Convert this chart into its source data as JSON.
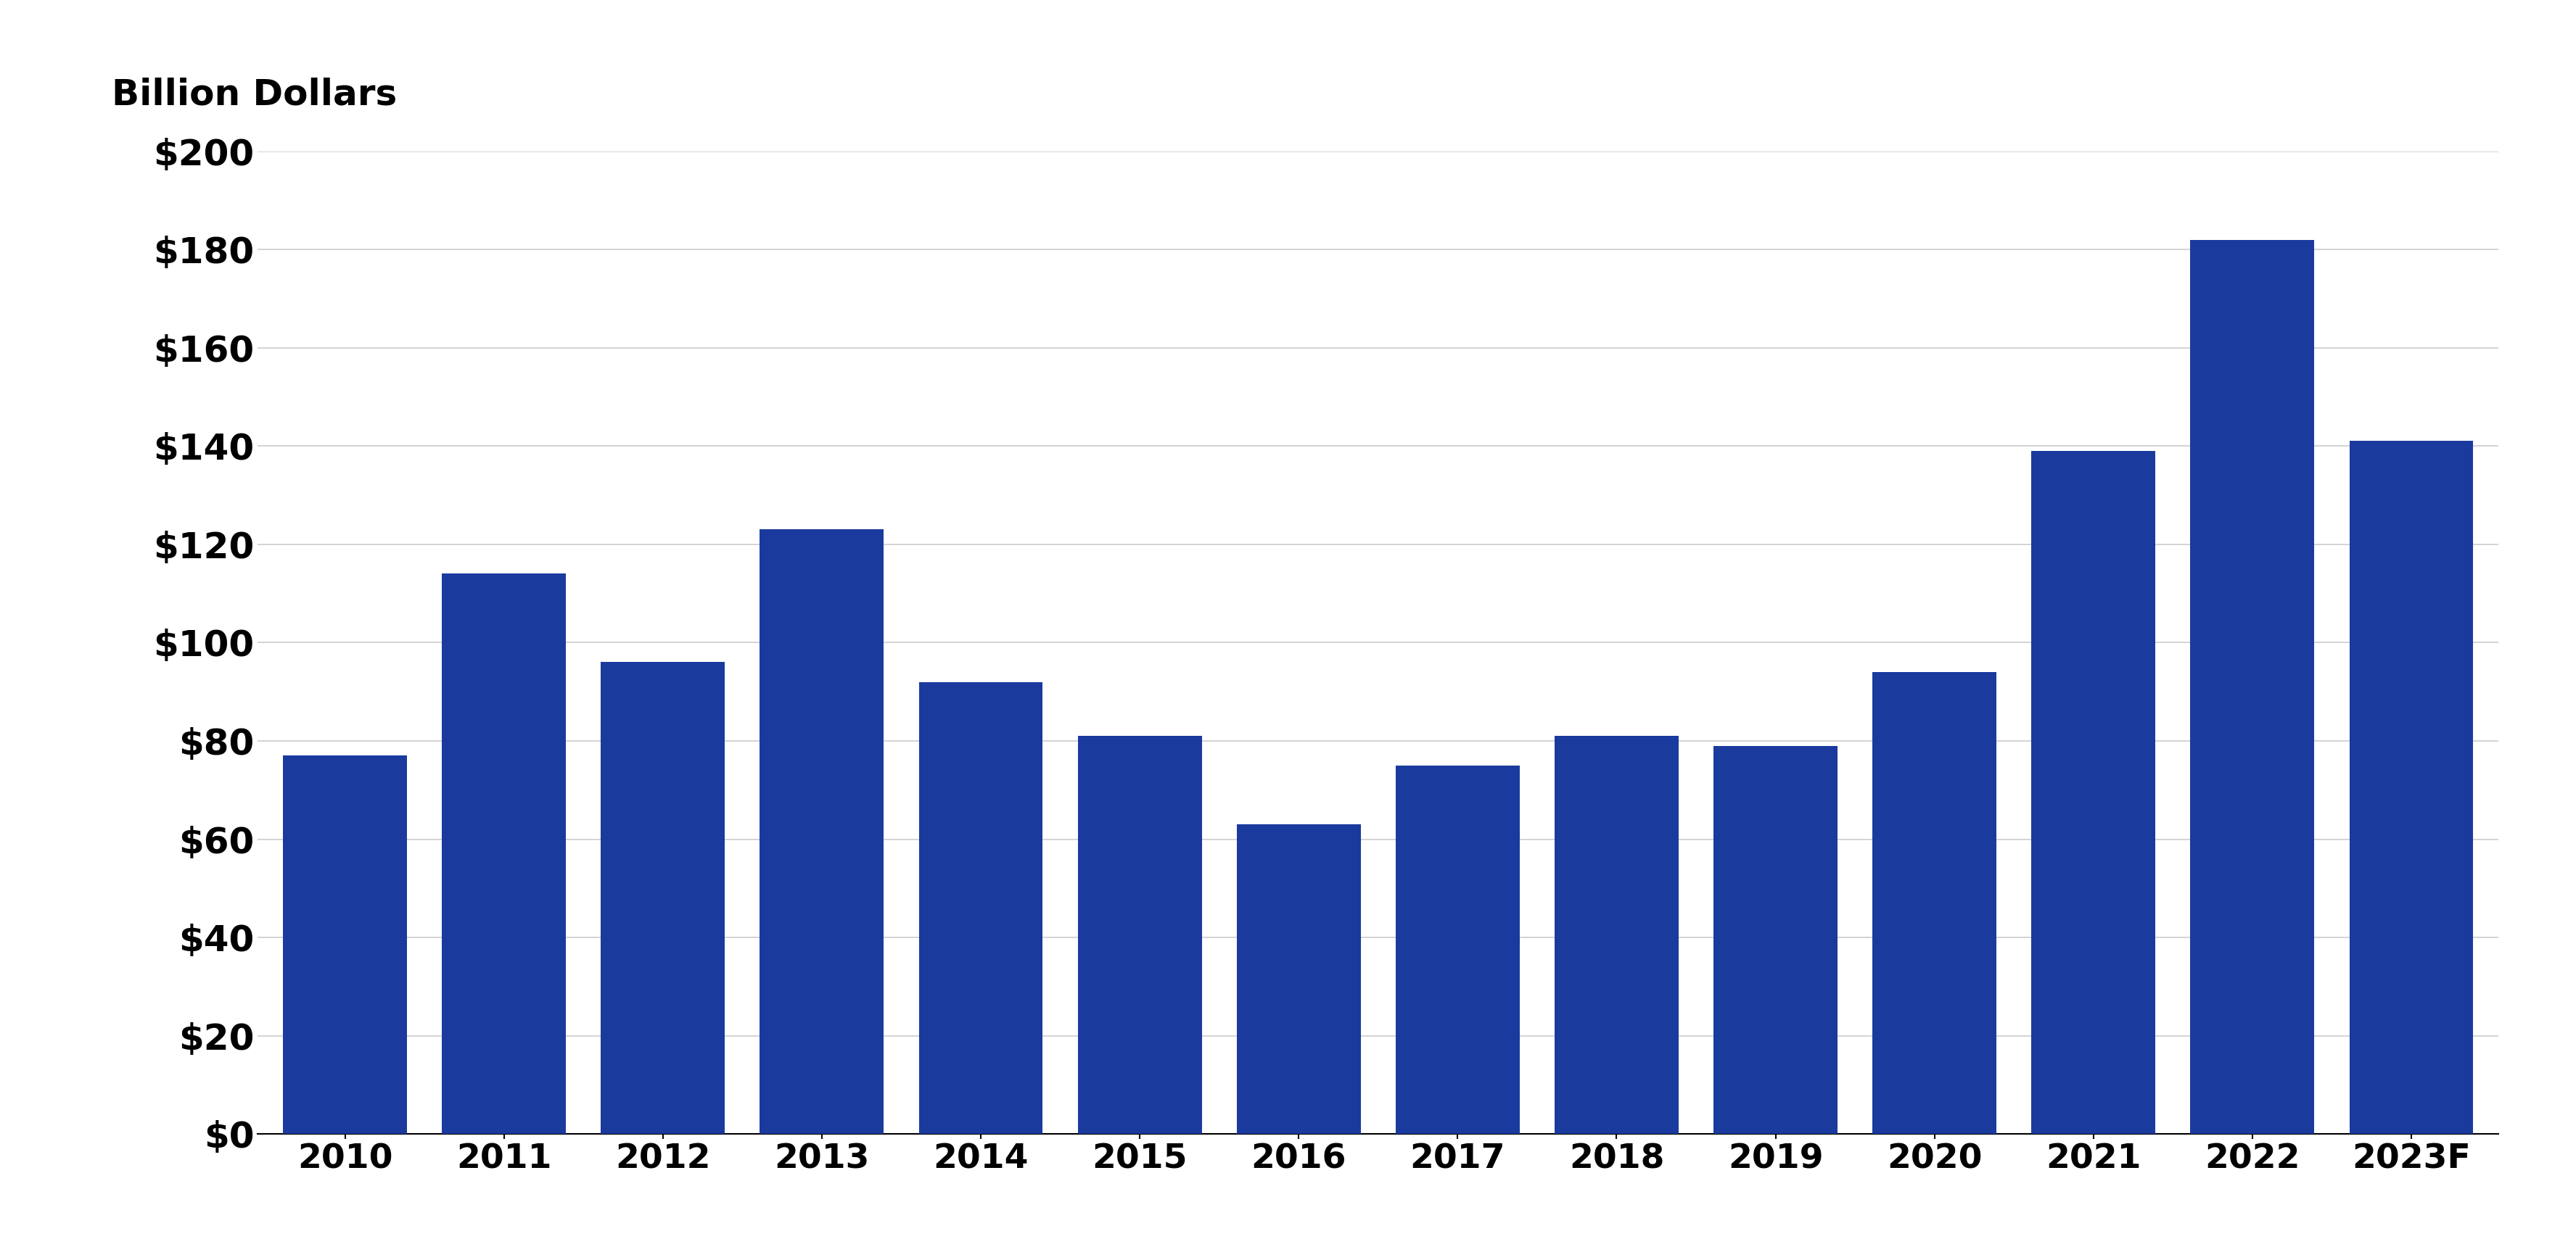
{
  "categories": [
    "2010",
    "2011",
    "2012",
    "2013",
    "2014",
    "2015",
    "2016",
    "2017",
    "2018",
    "2019",
    "2020",
    "2021",
    "2022",
    "2023F"
  ],
  "values": [
    77,
    114,
    96,
    123,
    92,
    81,
    63,
    75,
    81,
    79,
    94,
    139,
    182,
    141
  ],
  "bar_color": "#1a3a9e",
  "ylabel": "Billion Dollars",
  "ylim": [
    0,
    200
  ],
  "yticks": [
    0,
    20,
    40,
    60,
    80,
    100,
    120,
    140,
    160,
    180,
    200
  ],
  "background_color": "#ffffff",
  "ylabel_fontsize": 36,
  "tick_fontsize": 36,
  "xtick_fontsize": 34,
  "bar_width": 0.78,
  "grid_color": "#cccccc",
  "grid_linewidth": 1.2
}
